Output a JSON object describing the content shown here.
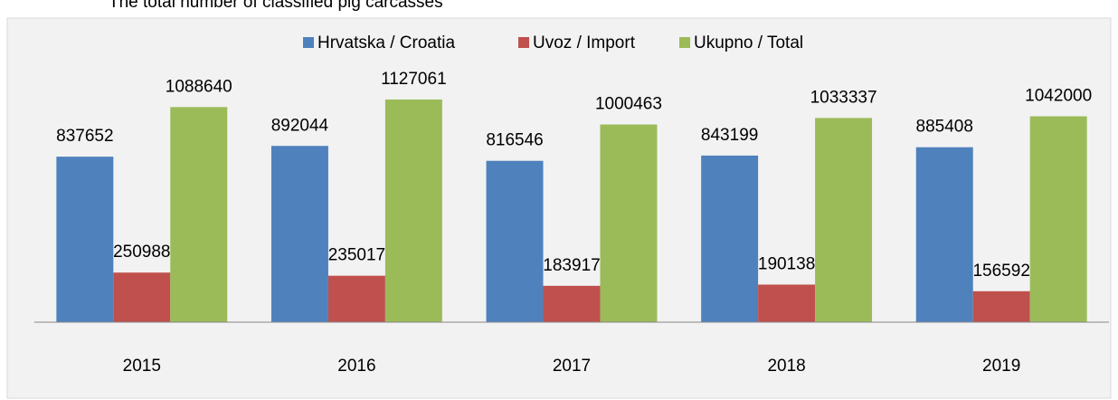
{
  "chart_data": {
    "type": "bar",
    "title": "The total number of classified pig carcasses",
    "categories": [
      "2015",
      "2016",
      "2017",
      "2018",
      "2019"
    ],
    "series": [
      {
        "name": "Hrvatska / Croatia",
        "color": "#4f81bd",
        "values": [
          837652,
          892044,
          816546,
          843199,
          885408
        ]
      },
      {
        "name": "Uvoz / Import",
        "color": "#c0504d",
        "values": [
          250988,
          235017,
          183917,
          190138,
          156592
        ]
      },
      {
        "name": "Ukupno / Total",
        "color": "#9bbb59",
        "values": [
          1088640,
          1127061,
          1000463,
          1033337,
          1042000
        ]
      }
    ],
    "ylim": [
      0,
      1200000
    ],
    "legend": "top"
  }
}
